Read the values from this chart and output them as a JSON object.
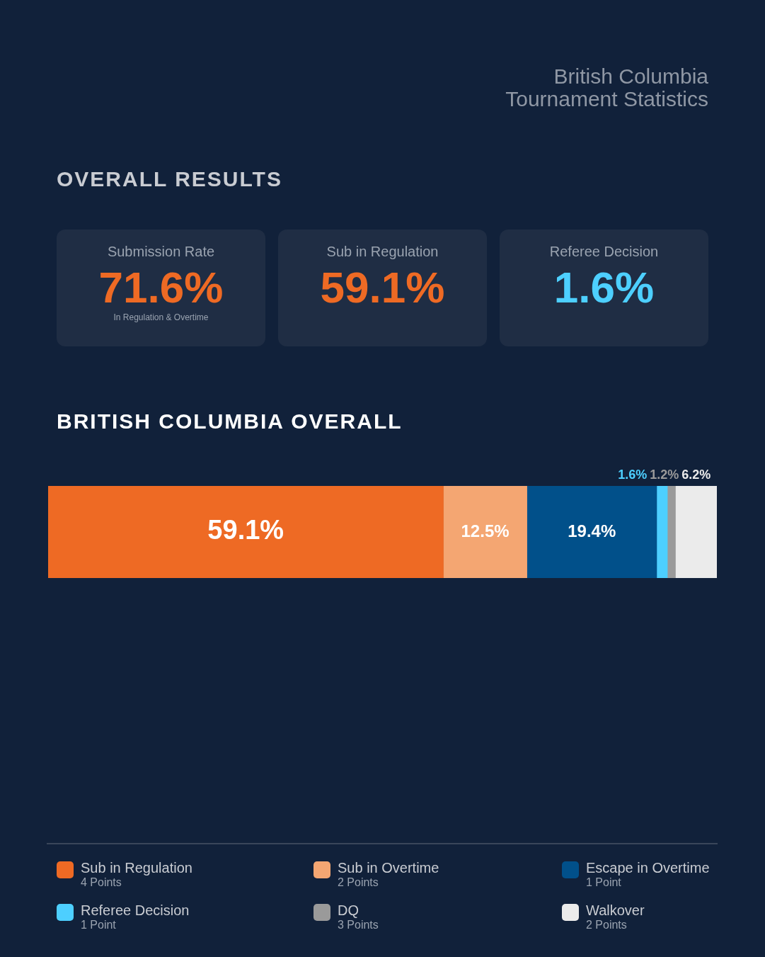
{
  "chart_data": [
    {
      "type": "other",
      "title": "British Columbia Tournament Statistics",
      "subtitle": "OVERALL RESULTS",
      "annotations": [
        "Submission Rate",
        "71.6%",
        "In Regulation & Overtime",
        "Sub in Regulation",
        "59.1%",
        "Referee Decision",
        "1.6%"
      ]
    },
    {
      "type": "bar",
      "title": "BRITISH COLUMBIA OVERALL",
      "orientation": "horizontal",
      "stacked": true,
      "categories": [
        null
      ],
      "xlim": [
        0,
        100
      ],
      "tick_labels": false,
      "legend": "bottom",
      "series": [
        {
          "name": "Sub in Regulation",
          "color": "#ee6a24",
          "values": [
            59.1
          ],
          "value_labels": [
            "59.1%"
          ]
        },
        {
          "name": "Sub in Overtime",
          "color": "#f4a672",
          "values": [
            12.5
          ],
          "value_labels": [
            "12.5%"
          ]
        },
        {
          "name": "Escape in Overtime",
          "color": "#01508a",
          "values": [
            19.4
          ],
          "value_labels": [
            "19.4%"
          ]
        },
        {
          "name": "Referee Decision",
          "color": "#4dcfff",
          "values": [
            1.6
          ],
          "value_labels": [
            "1.6%"
          ]
        },
        {
          "name": "DQ",
          "color": "#9a9a9a",
          "values": [
            1.2
          ],
          "value_labels": [
            "1.2%"
          ]
        },
        {
          "name": "Walkover",
          "color": "#ebebeb",
          "values": [
            6.2
          ],
          "value_labels": [
            "6.2%"
          ]
        }
      ],
      "annotations": [
        "4 Points",
        "2 Points",
        "1 Point",
        "1 Point",
        "3 Points",
        "2 Points"
      ]
    }
  ]
}
